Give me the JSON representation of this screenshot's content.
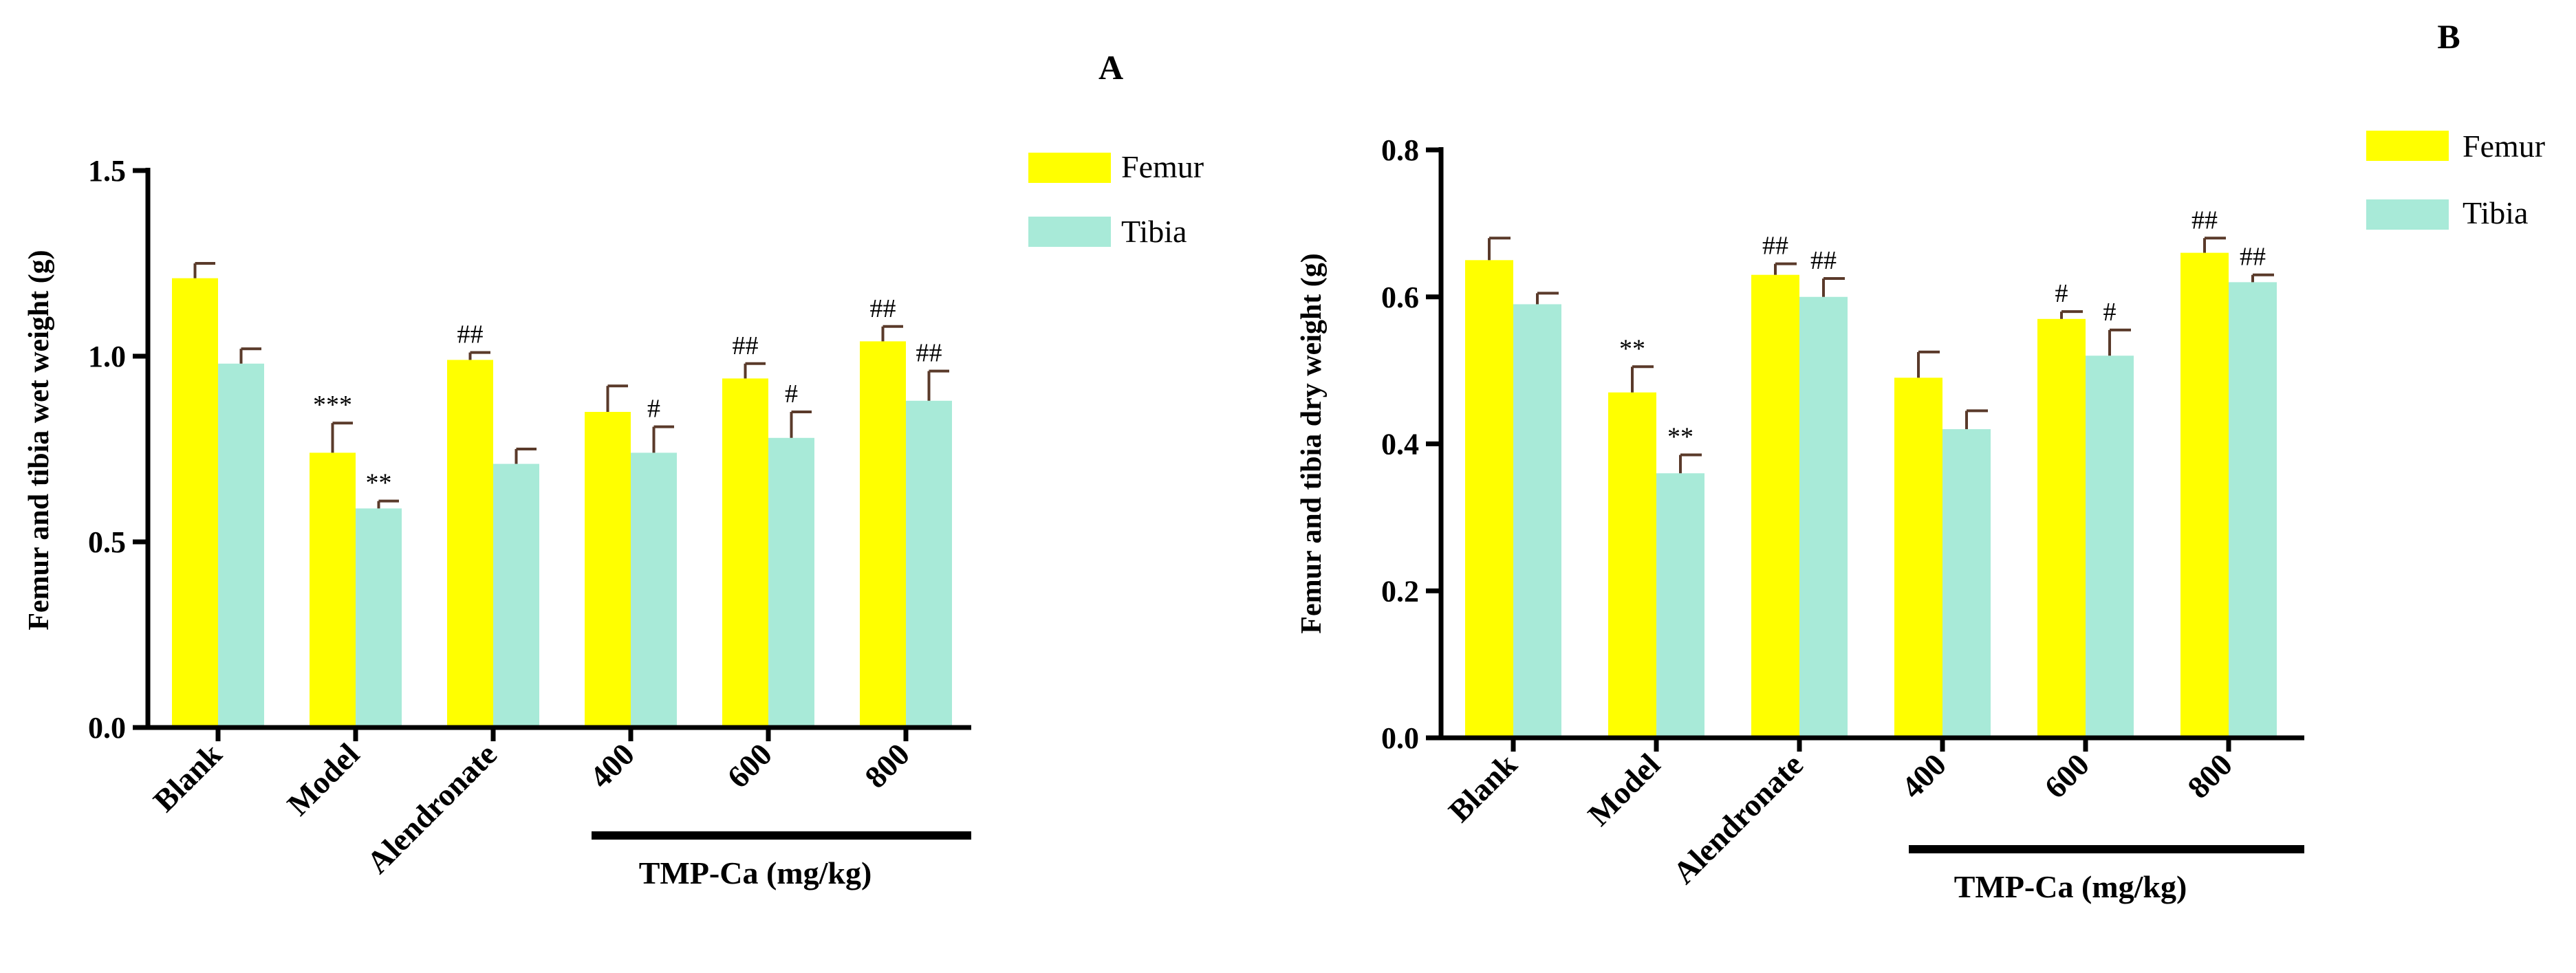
{
  "colors": {
    "femur": "#ffff00",
    "tibia": "#a8ead8",
    "axis": "#000000",
    "errorbar": "#5a3a2a"
  },
  "chart_data": [
    {
      "type": "bar",
      "panel_label": "A",
      "title": "",
      "ylabel": "Femur and tibia wet weight (g)",
      "xlabel": "",
      "ylim": [
        0,
        1.5
      ],
      "yticks": [
        "0.0",
        "0.5",
        "1.0",
        "1.5"
      ],
      "categories": [
        "Blank",
        "Model",
        "Alendronate",
        "400",
        "600",
        "800"
      ],
      "group_bar_label": "TMP-Ca (mg/kg)",
      "series": [
        {
          "name": "Femur",
          "values": [
            1.21,
            0.74,
            0.99,
            0.85,
            0.94,
            1.04
          ],
          "errors": [
            0.04,
            0.08,
            0.02,
            0.07,
            0.04,
            0.04
          ],
          "annotations": [
            "",
            "***",
            "##",
            "",
            "##",
            "##"
          ]
        },
        {
          "name": "Tibia",
          "values": [
            0.98,
            0.59,
            0.71,
            0.74,
            0.78,
            0.88
          ],
          "errors": [
            0.04,
            0.02,
            0.04,
            0.07,
            0.07,
            0.08
          ],
          "annotations": [
            "",
            "**",
            "",
            "#",
            "#",
            "##"
          ]
        }
      ],
      "legend": [
        "Femur",
        "Tibia"
      ]
    },
    {
      "type": "bar",
      "panel_label": "B",
      "title": "",
      "ylabel": "Femur and tibia dry weight (g)",
      "xlabel": "",
      "ylim": [
        0,
        0.8
      ],
      "yticks": [
        "0.0",
        "0.2",
        "0.4",
        "0.6",
        "0.8"
      ],
      "categories": [
        "Blank",
        "Model",
        "Alendronate",
        "400",
        "600",
        "800"
      ],
      "group_bar_label": "TMP-Ca (mg/kg)",
      "series": [
        {
          "name": "Femur",
          "values": [
            0.65,
            0.47,
            0.63,
            0.49,
            0.57,
            0.66
          ],
          "errors": [
            0.03,
            0.035,
            0.015,
            0.035,
            0.01,
            0.02
          ],
          "annotations": [
            "",
            "**",
            "##",
            "",
            "#",
            "##"
          ]
        },
        {
          "name": "Tibia",
          "values": [
            0.59,
            0.36,
            0.6,
            0.42,
            0.52,
            0.62
          ],
          "errors": [
            0.015,
            0.025,
            0.025,
            0.025,
            0.035,
            0.01
          ],
          "annotations": [
            "",
            "**",
            "##",
            "",
            "#",
            "##"
          ]
        }
      ],
      "legend": [
        "Femur",
        "Tibia"
      ]
    }
  ]
}
